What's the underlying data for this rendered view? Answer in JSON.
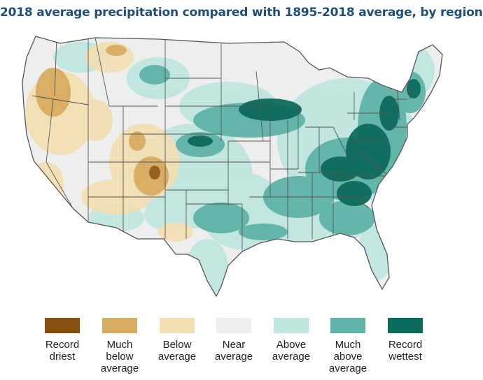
{
  "title": "2018 average precipitation compared with 1895-2018 average, by region",
  "legend": [
    {
      "lines": [
        "Record",
        "driest"
      ],
      "color": "#8a4e0c"
    },
    {
      "lines": [
        "Much",
        "below",
        "average"
      ],
      "color": "#d6ac60"
    },
    {
      "lines": [
        "Below",
        "average"
      ],
      "color": "#f2dfb4"
    },
    {
      "lines": [
        "Near",
        "average"
      ],
      "color": "#eeeeee"
    },
    {
      "lines": [
        "Above",
        "average"
      ],
      "color": "#bfe6df"
    },
    {
      "lines": [
        "Much",
        "above",
        "average"
      ],
      "color": "#5fb3a7"
    },
    {
      "lines": [
        "Record",
        "wettest"
      ],
      "color": "#0d6b5c"
    }
  ],
  "map": {
    "region": "Contiguous United States",
    "base_color": "#eeeeee",
    "border_color": "#555555"
  }
}
